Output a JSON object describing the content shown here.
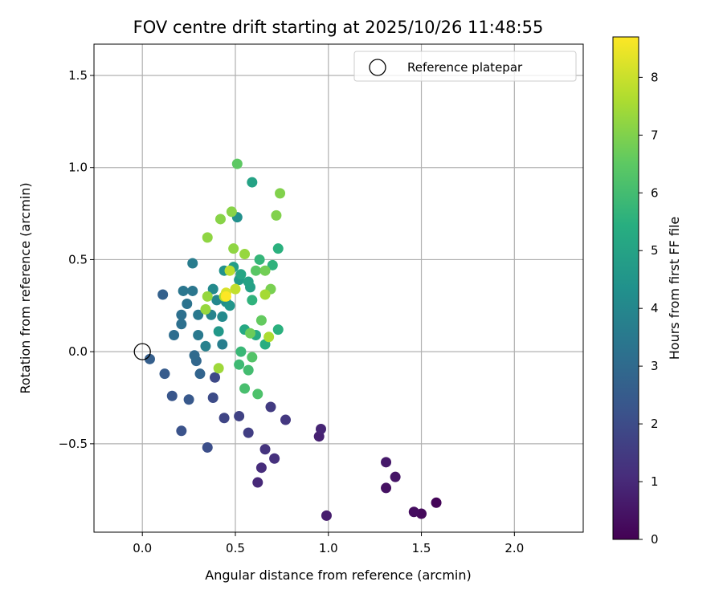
{
  "chart_data": {
    "type": "scatter",
    "title": "FOV centre drift starting at 2025/10/26 11:48:55",
    "xlabel": "Angular distance from reference (arcmin)",
    "ylabel": "Rotation from reference (arcmin)",
    "xlim": [
      -0.26,
      2.37
    ],
    "ylim": [
      -0.98,
      1.67
    ],
    "xticks": [
      0.0,
      0.5,
      1.0,
      1.5,
      2.0
    ],
    "xtick_labels": [
      "0.0",
      "0.5",
      "1.0",
      "1.5",
      "2.0"
    ],
    "yticks": [
      -0.5,
      0.0,
      0.5,
      1.0,
      1.5
    ],
    "ytick_labels": [
      "−0.5",
      "0.0",
      "0.5",
      "1.0",
      "1.5"
    ],
    "grid": true,
    "legend": {
      "position": "top-right",
      "entries": [
        {
          "label": "Reference platepar",
          "marker": "open-circle"
        }
      ]
    },
    "reference_point": {
      "x": 0.0,
      "y": 0.0
    },
    "colorbar": {
      "label": "Hours from first FF file",
      "range": [
        0,
        8.7
      ],
      "ticks": [
        0,
        1,
        2,
        3,
        4,
        5,
        6,
        7,
        8
      ],
      "tick_labels": [
        "0",
        "1",
        "2",
        "3",
        "4",
        "5",
        "6",
        "7",
        "8"
      ],
      "colormap": "viridis"
    },
    "series": [
      {
        "name": "FOV centre",
        "points": [
          [
            1.58,
            -0.82,
            0.1
          ],
          [
            1.5,
            -0.88,
            0.2
          ],
          [
            1.46,
            -0.87,
            0.3
          ],
          [
            1.31,
            -0.74,
            0.4
          ],
          [
            1.36,
            -0.68,
            0.5
          ],
          [
            1.31,
            -0.6,
            0.6
          ],
          [
            0.99,
            -0.89,
            0.7
          ],
          [
            0.95,
            -0.46,
            0.8
          ],
          [
            0.96,
            -0.42,
            0.9
          ],
          [
            0.62,
            -0.71,
            1.0
          ],
          [
            0.64,
            -0.63,
            1.1
          ],
          [
            0.71,
            -0.58,
            1.2
          ],
          [
            0.66,
            -0.53,
            1.3
          ],
          [
            0.77,
            -0.37,
            1.4
          ],
          [
            0.69,
            -0.3,
            1.5
          ],
          [
            0.57,
            -0.44,
            1.6
          ],
          [
            0.52,
            -0.35,
            1.7
          ],
          [
            0.44,
            -0.36,
            1.8
          ],
          [
            0.39,
            -0.14,
            1.9
          ],
          [
            0.38,
            -0.25,
            2.0
          ],
          [
            0.35,
            -0.52,
            2.1
          ],
          [
            0.21,
            -0.43,
            2.2
          ],
          [
            0.16,
            -0.24,
            2.3
          ],
          [
            0.25,
            -0.26,
            2.4
          ],
          [
            0.12,
            -0.12,
            2.5
          ],
          [
            0.04,
            -0.04,
            2.6
          ],
          [
            0.11,
            0.31,
            2.7
          ],
          [
            0.31,
            -0.12,
            2.8
          ],
          [
            0.29,
            -0.05,
            2.9
          ],
          [
            0.28,
            -0.02,
            3.0
          ],
          [
            0.17,
            0.09,
            3.1
          ],
          [
            0.21,
            0.2,
            3.2
          ],
          [
            0.21,
            0.15,
            3.2
          ],
          [
            0.24,
            0.26,
            3.3
          ],
          [
            0.27,
            0.33,
            3.4
          ],
          [
            0.22,
            0.33,
            3.4
          ],
          [
            0.3,
            0.09,
            3.5
          ],
          [
            0.3,
            0.2,
            3.5
          ],
          [
            0.27,
            0.48,
            3.6
          ],
          [
            0.43,
            0.04,
            3.7
          ],
          [
            0.34,
            0.03,
            3.8
          ],
          [
            0.37,
            0.2,
            3.9
          ],
          [
            0.4,
            0.28,
            4.0
          ],
          [
            0.38,
            0.34,
            4.1
          ],
          [
            0.43,
            0.19,
            4.1
          ],
          [
            0.45,
            0.27,
            4.2
          ],
          [
            0.51,
            0.73,
            4.3
          ],
          [
            0.44,
            0.44,
            4.4
          ],
          [
            0.47,
            0.25,
            4.5
          ],
          [
            0.41,
            0.11,
            4.6
          ],
          [
            0.52,
            0.39,
            4.7
          ],
          [
            0.49,
            0.46,
            4.8
          ],
          [
            0.58,
            0.35,
            4.9
          ],
          [
            0.57,
            0.38,
            5.0
          ],
          [
            0.59,
            0.92,
            5.0
          ],
          [
            0.53,
            0.42,
            5.1
          ],
          [
            0.55,
            0.12,
            5.2
          ],
          [
            0.61,
            0.09,
            5.3
          ],
          [
            0.66,
            0.04,
            5.4
          ],
          [
            0.73,
            0.12,
            5.5
          ],
          [
            0.73,
            0.56,
            5.5
          ],
          [
            0.7,
            0.47,
            5.6
          ],
          [
            0.59,
            0.28,
            5.6
          ],
          [
            0.63,
            0.5,
            5.7
          ],
          [
            0.53,
            0.0,
            5.8
          ],
          [
            0.52,
            -0.07,
            5.9
          ],
          [
            0.57,
            -0.1,
            6.0
          ],
          [
            0.55,
            -0.2,
            6.1
          ],
          [
            0.62,
            -0.23,
            6.2
          ],
          [
            0.59,
            -0.03,
            6.3
          ],
          [
            0.61,
            0.44,
            6.4
          ],
          [
            0.51,
            1.02,
            6.5
          ],
          [
            0.64,
            0.17,
            6.6
          ],
          [
            0.58,
            0.1,
            6.7
          ],
          [
            0.66,
            0.44,
            6.8
          ],
          [
            0.69,
            0.34,
            6.9
          ],
          [
            0.72,
            0.74,
            7.0
          ],
          [
            0.74,
            0.86,
            7.0
          ],
          [
            0.48,
            0.76,
            7.1
          ],
          [
            0.42,
            0.72,
            7.1
          ],
          [
            0.35,
            0.62,
            7.2
          ],
          [
            0.49,
            0.56,
            7.2
          ],
          [
            0.55,
            0.53,
            7.3
          ],
          [
            0.35,
            0.3,
            7.3
          ],
          [
            0.34,
            0.23,
            7.3
          ],
          [
            0.41,
            -0.09,
            7.4
          ],
          [
            0.66,
            0.31,
            7.5
          ],
          [
            0.68,
            0.08,
            7.6
          ],
          [
            0.44,
            0.3,
            7.7
          ],
          [
            0.47,
            0.44,
            7.8
          ],
          [
            0.5,
            0.34,
            7.9
          ],
          [
            0.45,
            0.32,
            8.2
          ],
          [
            0.45,
            0.3,
            8.7
          ]
        ]
      }
    ]
  }
}
